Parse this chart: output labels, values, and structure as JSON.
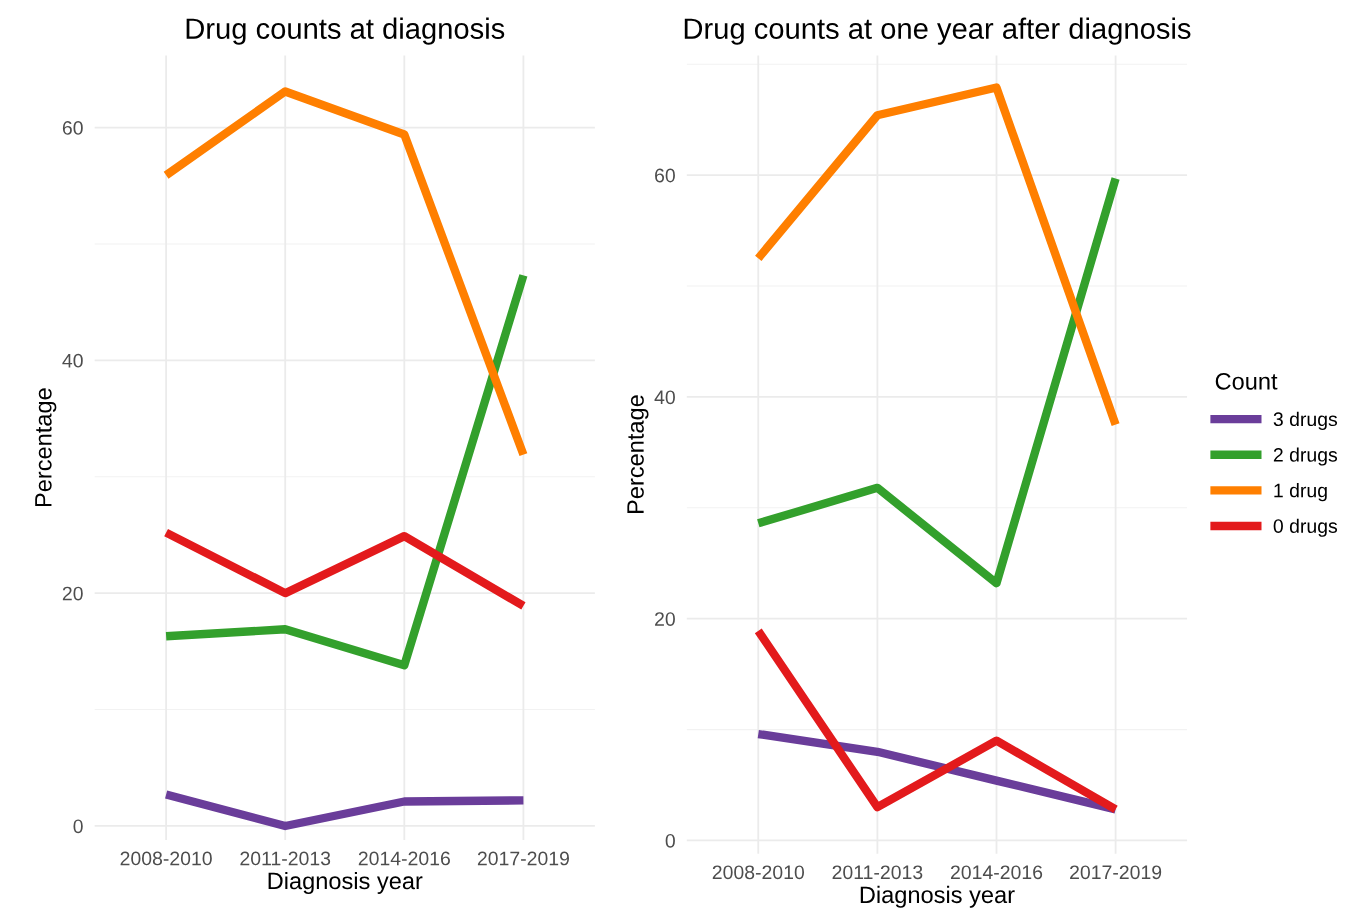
{
  "chart_data": [
    {
      "type": "line",
      "title": "Drug counts at diagnosis",
      "xlabel": "Diagnosis year",
      "ylabel": "Percentage",
      "categories": [
        "2008-2010",
        "2011-2013",
        "2014-2016",
        "2017-2019"
      ],
      "series": [
        {
          "color": "#6a3d9a",
          "values": [
            2.7,
            0,
            2.1,
            2.2
          ]
        },
        {
          "color": "#33a02c",
          "values": [
            16.3,
            16.9,
            13.8,
            47.3
          ]
        },
        {
          "color": "#ff7f00",
          "values": [
            55.9,
            63.1,
            59.4,
            31.9
          ]
        },
        {
          "color": "#e31a1c",
          "values": [
            25.2,
            20.0,
            24.9,
            18.9
          ]
        }
      ],
      "ylim": [
        -1.2,
        66.2
      ],
      "yticks": [
        0,
        20,
        40,
        60
      ],
      "grid": true,
      "legend": false
    },
    {
      "type": "line",
      "title": "Drug counts at one year after diagnosis",
      "xlabel": "Diagnosis year",
      "ylabel": "Percentage",
      "legend_title": "Count",
      "categories": [
        "2008-2010",
        "2011-2013",
        "2014-2016",
        "2017-2019"
      ],
      "series": [
        {
          "name": "3 drugs",
          "color": "#6a3d9a",
          "values": [
            9.6,
            8.0,
            5.4,
            2.8
          ]
        },
        {
          "name": "2 drugs",
          "color": "#33a02c",
          "values": [
            28.6,
            31.8,
            23.2,
            59.7
          ]
        },
        {
          "name": "1 drug",
          "color": "#ff7f00",
          "values": [
            52.5,
            65.4,
            67.9,
            37.5
          ]
        },
        {
          "name": "0 drugs",
          "color": "#e31a1c",
          "values": [
            18.9,
            3.0,
            9.0,
            2.8
          ]
        }
      ],
      "ylim": [
        -1.2,
        70.8
      ],
      "yticks": [
        0,
        20,
        40,
        60
      ],
      "grid": true,
      "legend": "right"
    }
  ]
}
